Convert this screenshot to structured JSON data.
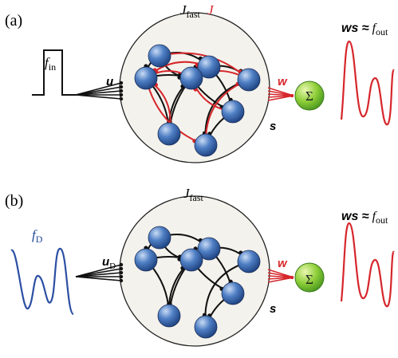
{
  "panel_a": {
    "label": "(a)",
    "connectivity": {
      "base": "J",
      "sub": "fast"
    },
    "learned": "J",
    "input": {
      "base": "f",
      "sub": "in"
    },
    "input_weights": "u",
    "readout_weights": "w",
    "rates": "s",
    "sum": "Σ",
    "output": {
      "prefix": "ws ≈",
      "base": "f",
      "sub": "out"
    }
  },
  "panel_b": {
    "label": "(b)",
    "connectivity": {
      "base": "J",
      "sub": "fast"
    },
    "input": {
      "base": "f",
      "sub": "D"
    },
    "input_weights": {
      "base": "u",
      "sub": "D"
    },
    "readout_weights": "w",
    "rates": "s",
    "sum": "Σ",
    "output": {
      "prefix": "ws ≈",
      "base": "f",
      "sub": "out"
    }
  }
}
